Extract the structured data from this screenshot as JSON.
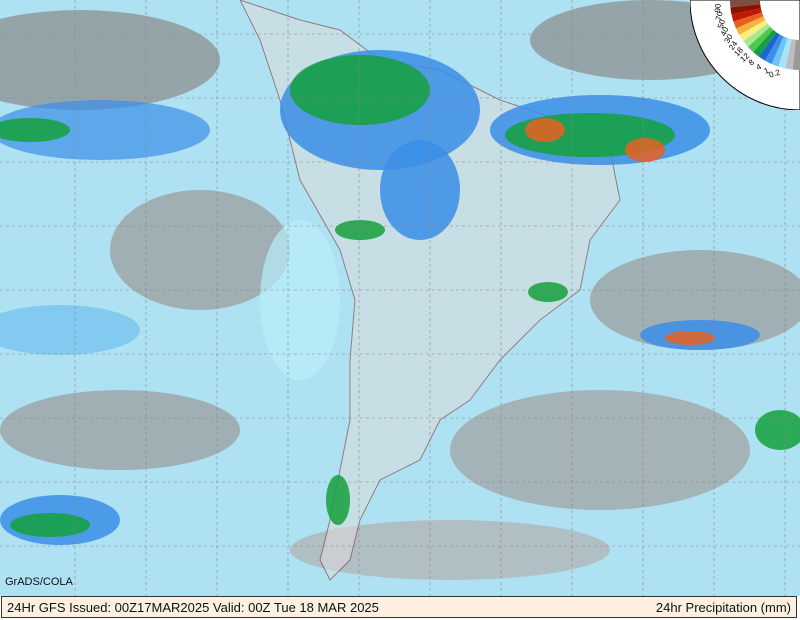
{
  "credit": "GrADS/COLA",
  "footer": {
    "left": "24Hr GFS Issued: 00Z17MAR2025 Valid: 00Z Tue 18 MAR 2025",
    "right": "24hr Precipitation (mm)"
  },
  "legend": {
    "levels": [
      "0.2",
      "1",
      "4",
      "8",
      "12",
      "18",
      "24",
      "30",
      "40",
      "50",
      "70",
      "90"
    ],
    "colors": [
      "#9a9a9a",
      "#bdbdbd",
      "#a8e4f8",
      "#6cc4f4",
      "#3a8ee8",
      "#1e64d0",
      "#14a03c",
      "#50c850",
      "#a8e890",
      "#f8f080",
      "#f8b040",
      "#e86020",
      "#c01808",
      "#901000",
      "#7a5040"
    ]
  },
  "colors": {
    "ocean_base": "#aee2f2",
    "land": "#dcdcdc",
    "border": "#7a2a2a",
    "grid": "#888888"
  }
}
